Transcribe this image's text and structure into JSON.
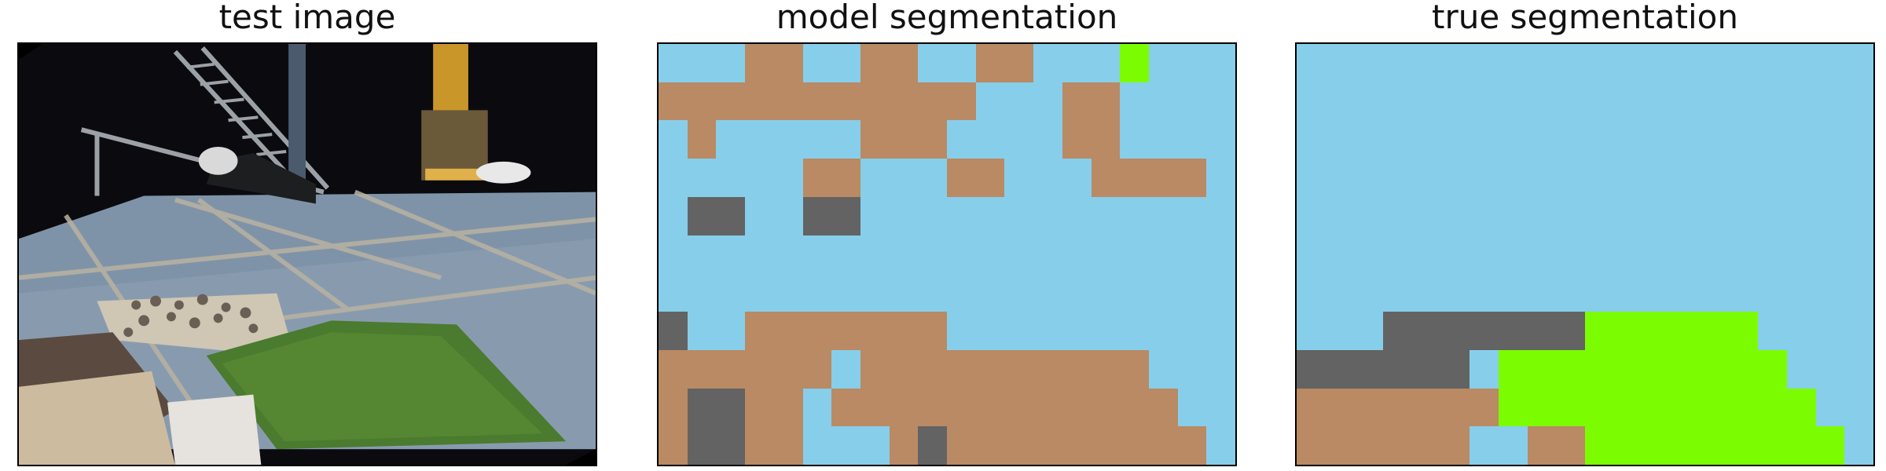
{
  "titles": {
    "test": "test image",
    "model": "model segmentation",
    "truth": "true segmentation"
  },
  "colors": {
    "S": "#87ceeb",
    "B": "#b98a63",
    "G": "#7cfc00",
    "D": "#636363"
  },
  "model_grid": [
    "SSSBBSSBBSSBBSSSGSSS",
    "BBBBBBBBBBBSSSBBSSSS",
    "SBSSSSSBBBSSSSBBSSSS",
    "SSSSSBBSSSBBSSSBBBBS",
    "SDDSSDDSSSSSSSSSSSSS",
    "SSSSSSSSSSSSSSSSSSSS",
    "SSSSSSSSSSSSSSSSSSSS",
    "DSSBBBBBBBSSSSSSSSSS",
    "BBBBBBSBBBBBBBBBBSSS",
    "BDDBBSBBBBBBBBBBBBSS",
    "BDDBBSSSBDBBBBBBBBBS"
  ],
  "truth_grid": [
    "SSSSSSSSSSSSSSSSSSSS",
    "SSSSSSSSSSSSSSSSSSSS",
    "SSSSSSSSSSSSSSSSSSSS",
    "SSSSSSSSSSSSSSSSSSSS",
    "SSSSSSSSSSSSSSSSSSSS",
    "SSSSSSSSSSSSSSSSSSSS",
    "SSSSSSSSSSSSSSSSSSSS",
    "SSSDDDDDDDGGGGGGSSSS",
    "DDDDDDSGGGGGGGGGGSSS",
    "BBBBBBBGGGGGGGGGGGSS",
    "BBBBBBSSBBGGGGGGGGGS"
  ]
}
